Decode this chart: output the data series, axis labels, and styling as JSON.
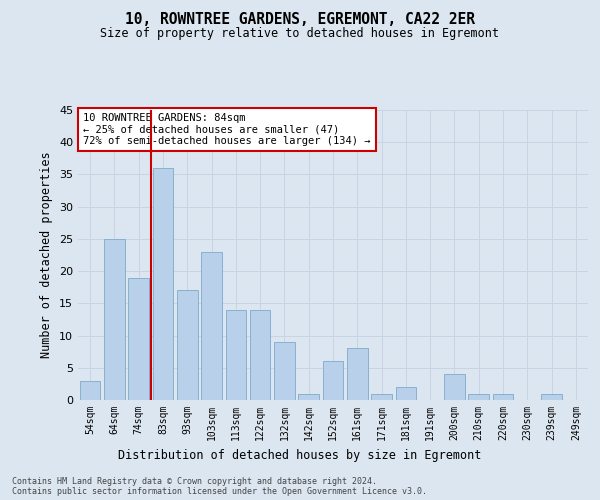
{
  "title": "10, ROWNTREE GARDENS, EGREMONT, CA22 2ER",
  "subtitle": "Size of property relative to detached houses in Egremont",
  "xlabel": "Distribution of detached houses by size in Egremont",
  "ylabel": "Number of detached properties",
  "categories": [
    "54sqm",
    "64sqm",
    "74sqm",
    "83sqm",
    "93sqm",
    "103sqm",
    "113sqm",
    "122sqm",
    "132sqm",
    "142sqm",
    "152sqm",
    "161sqm",
    "171sqm",
    "181sqm",
    "191sqm",
    "200sqm",
    "210sqm",
    "220sqm",
    "230sqm",
    "239sqm",
    "249sqm"
  ],
  "values": [
    3,
    25,
    19,
    36,
    17,
    23,
    14,
    14,
    9,
    1,
    6,
    8,
    1,
    2,
    0,
    4,
    1,
    1,
    0,
    1,
    0
  ],
  "bar_color": "#b8d0ea",
  "bar_edge_color": "#8ab0d0",
  "vline_index": 3,
  "vline_color": "#cc0000",
  "annotation_text": "10 ROWNTREE GARDENS: 84sqm\n← 25% of detached houses are smaller (47)\n72% of semi-detached houses are larger (134) →",
  "annotation_bg": "#ffffff",
  "annotation_edge": "#cc0000",
  "ylim": [
    0,
    45
  ],
  "yticks": [
    0,
    5,
    10,
    15,
    20,
    25,
    30,
    35,
    40,
    45
  ],
  "grid_color": "#c8d4e4",
  "bg_color": "#dce6f0",
  "footer_line1": "Contains HM Land Registry data © Crown copyright and database right 2024.",
  "footer_line2": "Contains public sector information licensed under the Open Government Licence v3.0."
}
